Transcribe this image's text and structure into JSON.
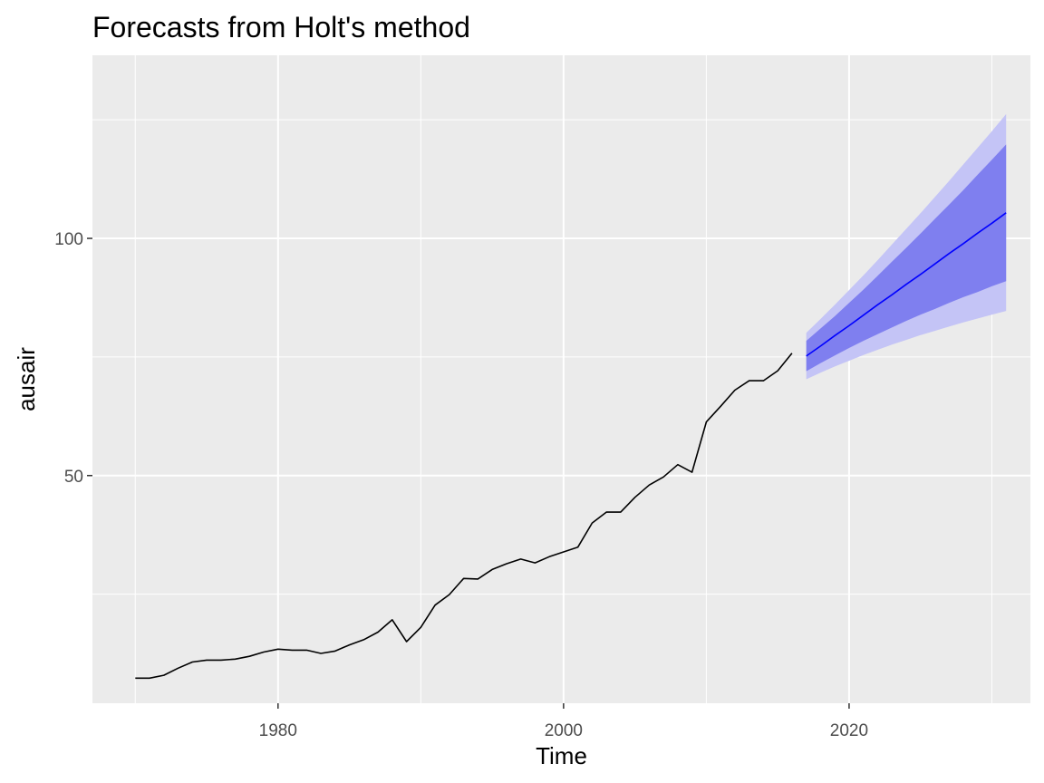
{
  "chart_data": {
    "type": "line",
    "title": "Forecasts from Holt's method",
    "xlabel": "Time",
    "ylabel": "ausair",
    "xlim": [
      1967,
      2032.7
    ],
    "ylim": [
      2.0,
      138.6
    ],
    "x_ticks": [
      1980,
      2000,
      2020
    ],
    "x_tick_labels": [
      "1980",
      "2000",
      "2020"
    ],
    "x_minor_ticks": [
      1970,
      1990,
      2010,
      2030
    ],
    "y_ticks": [
      50,
      100
    ],
    "y_tick_labels": [
      "50",
      "100"
    ],
    "y_minor_ticks": [
      25,
      75,
      125
    ],
    "grid": true,
    "legend": "none",
    "colors": {
      "panel": "#ebebeb",
      "grid": "#ffffff",
      "history": "#000000",
      "forecast_line": "#0000ff",
      "band_80": "#7f7fef",
      "band_95": "#c4c4f6"
    },
    "series": [
      {
        "x": [
          1970,
          1971,
          1972,
          1973,
          1974,
          1975,
          1976,
          1977,
          1978,
          1979,
          1980,
          1981,
          1982,
          1983,
          1984,
          1985,
          1986,
          1987,
          1988,
          1989,
          1990,
          1991,
          1992,
          1993,
          1994,
          1995,
          1996,
          1997,
          1998,
          1999,
          2000,
          2001,
          2002,
          2003,
          2004,
          2005,
          2006,
          2007,
          2008,
          2009,
          2010,
          2011,
          2012,
          2013,
          2014,
          2015,
          2016
        ],
        "values": [
          7.3,
          7.3,
          7.9,
          9.4,
          10.7,
          11.1,
          11.1,
          11.3,
          11.9,
          12.8,
          13.4,
          13.2,
          13.2,
          12.5,
          13.0,
          14.3,
          15.4,
          17.0,
          19.6,
          15.0,
          18.0,
          22.7,
          24.9,
          28.3,
          28.2,
          30.2,
          31.4,
          32.4,
          31.6,
          32.9,
          33.9,
          34.9,
          40.0,
          42.3,
          42.3,
          45.4,
          48.0,
          49.7,
          52.3,
          50.7,
          61.3,
          64.6,
          68.0,
          70.0,
          70.0,
          72.1,
          75.8
        ]
      },
      {
        "name": "Point forecast",
        "x": [
          2017,
          2018,
          2019,
          2020,
          2021,
          2022,
          2023,
          2024,
          2025,
          2026,
          2027,
          2028,
          2029,
          2030,
          2031
        ],
        "values": [
          75.2,
          77.3,
          79.5,
          81.6,
          83.8,
          86.0,
          88.1,
          90.3,
          92.4,
          94.6,
          96.8,
          98.9,
          101.1,
          103.2,
          105.4
        ]
      }
    ],
    "intervals": {
      "x": [
        2017,
        2018,
        2019,
        2020,
        2021,
        2022,
        2023,
        2024,
        2025,
        2026,
        2027,
        2028,
        2029,
        2030,
        2031
      ],
      "lo80": [
        72.0,
        73.7,
        75.3,
        76.9,
        78.4,
        79.8,
        81.2,
        82.6,
        83.9,
        85.1,
        86.4,
        87.6,
        88.7,
        89.9,
        91.0
      ],
      "hi80": [
        78.4,
        81.0,
        83.6,
        86.4,
        89.2,
        92.1,
        95.1,
        98.0,
        101.0,
        104.1,
        107.1,
        110.2,
        113.4,
        116.6,
        119.8
      ],
      "lo95": [
        70.3,
        71.7,
        73.0,
        74.2,
        75.4,
        76.5,
        77.6,
        78.6,
        79.6,
        80.5,
        81.4,
        82.3,
        83.1,
        83.9,
        84.7
      ],
      "hi95": [
        80.1,
        83.0,
        86.0,
        89.1,
        92.2,
        95.4,
        98.7,
        102.0,
        105.3,
        108.7,
        112.1,
        115.6,
        119.1,
        122.6,
        126.2
      ]
    }
  }
}
